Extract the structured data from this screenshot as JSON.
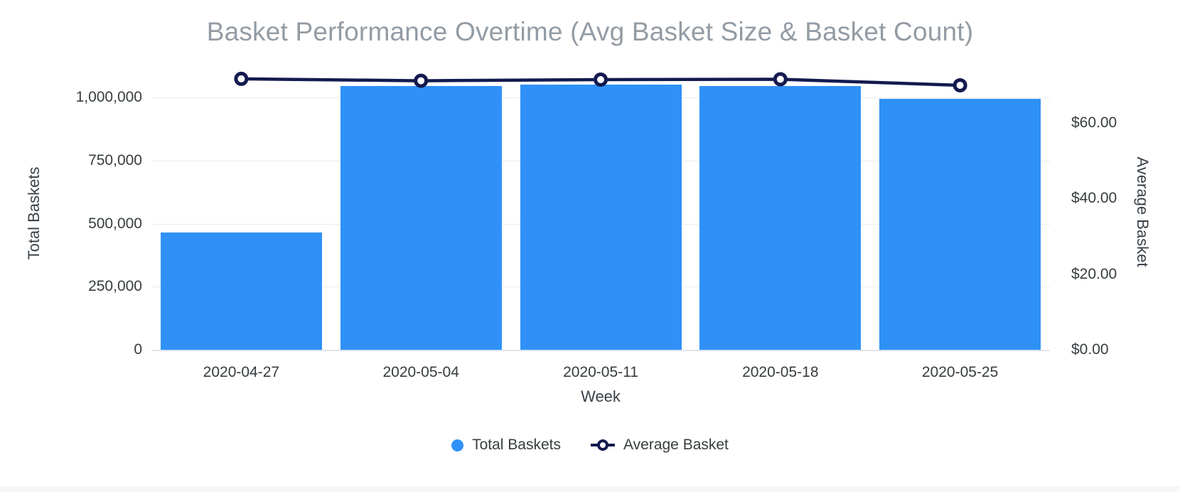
{
  "title": "Basket Performance Overtime (Avg Basket Size & Basket Count)",
  "chart_data": {
    "type": "combo",
    "title": "Basket Performance Overtime (Avg Basket Size & Basket Count)",
    "xlabel": "Week",
    "categories": [
      "2020-04-27",
      "2020-05-04",
      "2020-05-11",
      "2020-05-18",
      "2020-05-25"
    ],
    "series": [
      {
        "name": "Total Baskets",
        "type": "bar",
        "yaxis": "left",
        "color": "#2F91F7",
        "values": [
          465000,
          1045000,
          1050000,
          1045000,
          995000
        ]
      },
      {
        "name": "Average Basket",
        "type": "line",
        "yaxis": "right",
        "color": "#131A4F",
        "values": [
          71.7,
          71.2,
          71.5,
          71.6,
          70.0
        ]
      }
    ],
    "y1": {
      "label": "Total Baskets",
      "lim": [
        0,
        1000000
      ],
      "ticks": [
        {
          "value": 0,
          "label": "0"
        },
        {
          "value": 250000,
          "label": "250,000"
        },
        {
          "value": 500000,
          "label": "500,000"
        },
        {
          "value": 750000,
          "label": "750,000"
        },
        {
          "value": 1000000,
          "label": "1,000,000"
        }
      ]
    },
    "y2": {
      "label": "Average Basket",
      "lim": [
        0,
        80
      ],
      "ticks": [
        {
          "value": 0,
          "label": "$0.00"
        },
        {
          "value": 20,
          "label": "$20.00"
        },
        {
          "value": 40,
          "label": "$40.00"
        },
        {
          "value": 60,
          "label": "$60.00"
        }
      ]
    },
    "grid": "horizontal-only",
    "legend_position": "bottom"
  },
  "legend": {
    "items": [
      {
        "label": "Total Baskets",
        "marker": "filled-circle"
      },
      {
        "label": "Average Basket",
        "marker": "line-hollow-circle"
      }
    ]
  },
  "colors": {
    "bar": "#2F91F7",
    "line": "#131A4F",
    "marker_fill": "#FFFFFF",
    "title_text": "#939CA5",
    "axis_text": "#373D3F",
    "gridline": "#ECECEC",
    "baseline": "#E0E4EA",
    "bottom_band": "#F6F7F8"
  }
}
